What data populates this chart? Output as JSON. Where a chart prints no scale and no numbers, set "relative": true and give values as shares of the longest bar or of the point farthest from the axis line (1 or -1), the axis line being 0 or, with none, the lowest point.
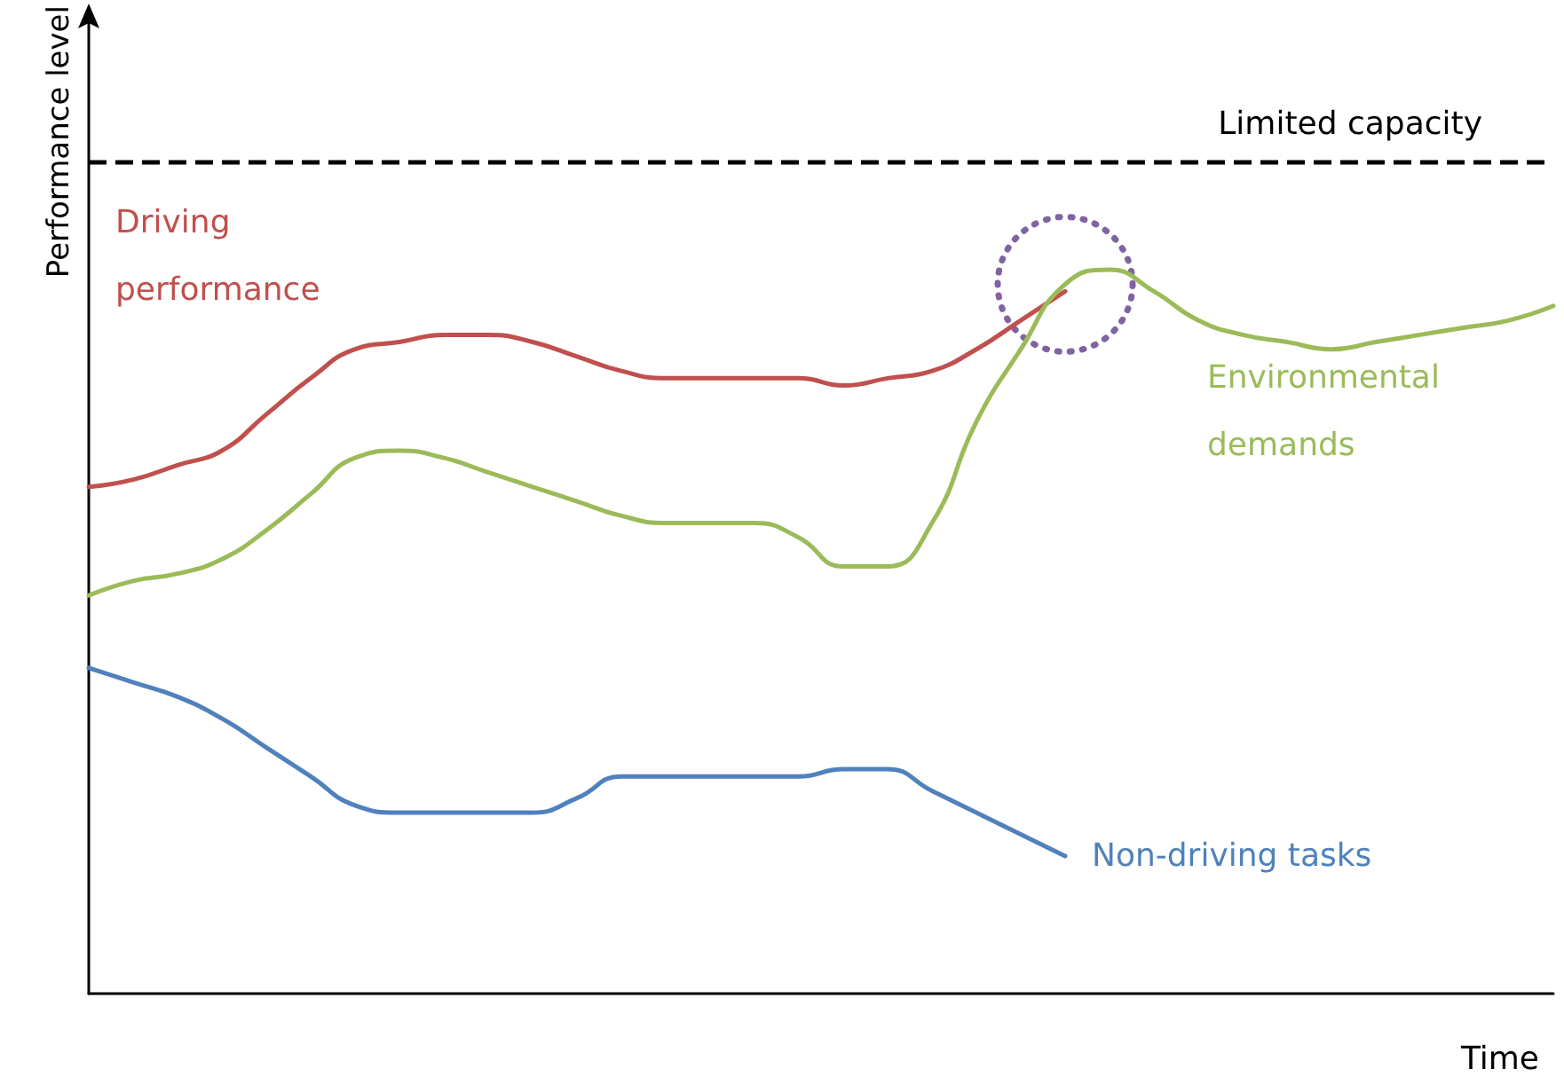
{
  "chart_data": {
    "type": "line",
    "relative": true,
    "xlabel": "Time",
    "ylabel": "Performance level",
    "grid": false,
    "legend": false,
    "marker": "none",
    "line_style": "solid",
    "categories": [
      null,
      null,
      null,
      null,
      null,
      null,
      null,
      null,
      null,
      null,
      null,
      null,
      null,
      null,
      null,
      null,
      null,
      null,
      null,
      null,
      null,
      null,
      null,
      null,
      null,
      null,
      null,
      null,
      null,
      null,
      null,
      null,
      null,
      null
    ],
    "series": [
      {
        "name": "Driving performance",
        "color": "#c0504d",
        "values": [
          0.7,
          0.71,
          0.73,
          0.75,
          0.8,
          0.85,
          0.89,
          0.9,
          0.91,
          0.91,
          0.9,
          0.88,
          0.86,
          0.85,
          0.85,
          0.85,
          0.85,
          0.84,
          0.85,
          0.86,
          0.89,
          0.93,
          0.97,
          null,
          null,
          null,
          null,
          null,
          null,
          null,
          null,
          null,
          null,
          null
        ]
      },
      {
        "name": "Environmental demands",
        "color": "#9bbb59",
        "values": [
          0.55,
          0.57,
          0.58,
          0.6,
          0.64,
          0.69,
          0.74,
          0.75,
          0.74,
          0.72,
          0.7,
          0.68,
          0.66,
          0.65,
          0.65,
          0.65,
          0.63,
          0.59,
          0.59,
          0.65,
          0.79,
          0.89,
          0.98,
          1,
          0.97,
          0.93,
          0.91,
          0.9,
          0.89,
          0.9,
          0.91,
          0.92,
          0.93,
          0.95
        ]
      },
      {
        "name": "Non-driving tasks",
        "color": "#4f81bd",
        "values": [
          0.45,
          0.43,
          0.41,
          0.38,
          0.34,
          0.3,
          0.26,
          0.25,
          0.25,
          0.25,
          0.25,
          0.27,
          0.3,
          0.3,
          0.3,
          0.3,
          0.3,
          0.31,
          0.31,
          0.28,
          0.25,
          0.22,
          0.19,
          null,
          null,
          null,
          null,
          null,
          null,
          null,
          null,
          null,
          null,
          null
        ]
      }
    ],
    "ref_lines": [
      {
        "axis": "y",
        "value": 1.15,
        "label": "Limited capacity",
        "color": "#000000",
        "line_style": "dashed"
      }
    ]
  }
}
